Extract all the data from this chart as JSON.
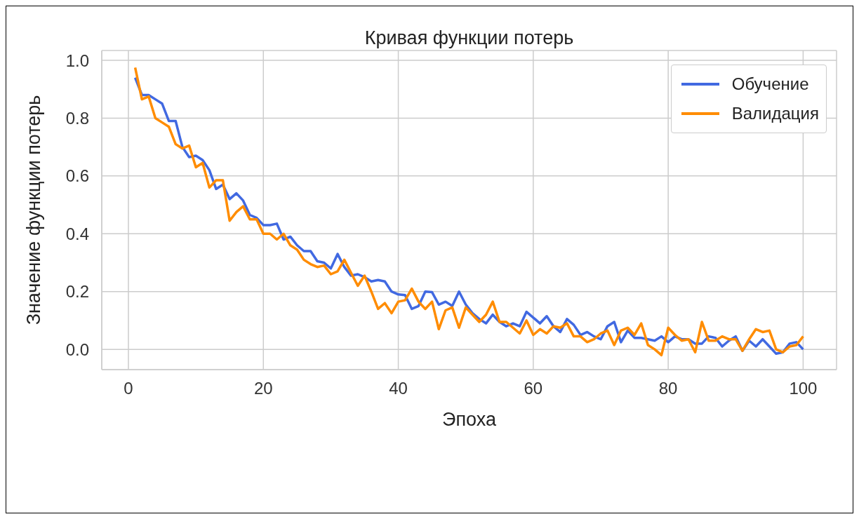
{
  "chart_data": {
    "type": "line",
    "title": "Кривая функции потерь",
    "xlabel": "Эпоха",
    "ylabel": "Значение функции потерь",
    "x": [
      1,
      2,
      3,
      4,
      5,
      6,
      7,
      8,
      9,
      10,
      11,
      12,
      13,
      14,
      15,
      16,
      17,
      18,
      19,
      20,
      21,
      22,
      23,
      24,
      25,
      26,
      27,
      28,
      29,
      30,
      31,
      32,
      33,
      34,
      35,
      36,
      37,
      38,
      39,
      40,
      41,
      42,
      43,
      44,
      45,
      46,
      47,
      48,
      49,
      50,
      51,
      52,
      53,
      54,
      55,
      56,
      57,
      58,
      59,
      60,
      61,
      62,
      63,
      64,
      65,
      66,
      67,
      68,
      69,
      70,
      71,
      72,
      73,
      74,
      75,
      76,
      77,
      78,
      79,
      80,
      81,
      82,
      83,
      84,
      85,
      86,
      87,
      88,
      89,
      90,
      91,
      92,
      93,
      94,
      95,
      96,
      97,
      98,
      99,
      100
    ],
    "series": [
      {
        "name": "Обучение",
        "color": "#4169e1",
        "values": [
          0.94,
          0.88,
          0.88,
          0.865,
          0.85,
          0.79,
          0.79,
          0.7,
          0.665,
          0.67,
          0.655,
          0.62,
          0.555,
          0.57,
          0.52,
          0.54,
          0.515,
          0.465,
          0.455,
          0.43,
          0.43,
          0.435,
          0.38,
          0.39,
          0.36,
          0.34,
          0.34,
          0.305,
          0.3,
          0.28,
          0.33,
          0.285,
          0.255,
          0.26,
          0.25,
          0.235,
          0.24,
          0.235,
          0.2,
          0.19,
          0.188,
          0.14,
          0.15,
          0.2,
          0.198,
          0.155,
          0.165,
          0.15,
          0.2,
          0.155,
          0.125,
          0.105,
          0.09,
          0.12,
          0.095,
          0.08,
          0.09,
          0.08,
          0.13,
          0.11,
          0.09,
          0.115,
          0.08,
          0.06,
          0.105,
          0.085,
          0.05,
          0.06,
          0.045,
          0.035,
          0.08,
          0.095,
          0.025,
          0.065,
          0.04,
          0.04,
          0.035,
          0.03,
          0.045,
          0.025,
          0.045,
          0.035,
          0.035,
          0.02,
          0.02,
          0.045,
          0.04,
          0.01,
          0.03,
          0.045,
          -0.005,
          0.03,
          0.01,
          0.035,
          0.01,
          -0.015,
          -0.01,
          0.02,
          0.025,
          0.0
        ]
      },
      {
        "name": "Валидация",
        "color": "#ff8c00",
        "values": [
          0.975,
          0.865,
          0.875,
          0.8,
          0.785,
          0.77,
          0.71,
          0.695,
          0.705,
          0.63,
          0.645,
          0.56,
          0.585,
          0.585,
          0.445,
          0.475,
          0.495,
          0.45,
          0.45,
          0.4,
          0.4,
          0.38,
          0.4,
          0.36,
          0.345,
          0.31,
          0.295,
          0.285,
          0.29,
          0.26,
          0.27,
          0.31,
          0.265,
          0.22,
          0.255,
          0.2,
          0.14,
          0.16,
          0.125,
          0.165,
          0.17,
          0.21,
          0.165,
          0.14,
          0.165,
          0.07,
          0.135,
          0.145,
          0.075,
          0.145,
          0.12,
          0.095,
          0.12,
          0.165,
          0.095,
          0.095,
          0.075,
          0.055,
          0.1,
          0.05,
          0.07,
          0.055,
          0.08,
          0.075,
          0.09,
          0.045,
          0.045,
          0.025,
          0.035,
          0.055,
          0.065,
          0.015,
          0.065,
          0.075,
          0.05,
          0.09,
          0.015,
          0.0,
          -0.02,
          0.075,
          0.05,
          0.03,
          0.035,
          -0.01,
          0.095,
          0.03,
          0.03,
          0.045,
          0.035,
          0.035,
          -0.005,
          0.035,
          0.07,
          0.06,
          0.065,
          0.0,
          -0.01,
          0.01,
          0.015,
          0.045
        ]
      }
    ],
    "xlim": [
      -3.95,
      104.95
    ],
    "xticks": [
      0,
      20,
      40,
      60,
      80,
      100
    ],
    "ylim": [
      -0.07,
      1.034
    ],
    "yticks": [
      {
        "value": 0,
        "label": "0.0"
      },
      {
        "value": 0.2,
        "label": "0.2"
      },
      {
        "value": 0.4,
        "label": "0.4"
      },
      {
        "value": 0.6,
        "label": "0.6"
      },
      {
        "value": 0.8,
        "label": "0.8"
      },
      {
        "value": 1,
        "label": "1.0"
      }
    ],
    "grid": true,
    "legend": "top right"
  }
}
